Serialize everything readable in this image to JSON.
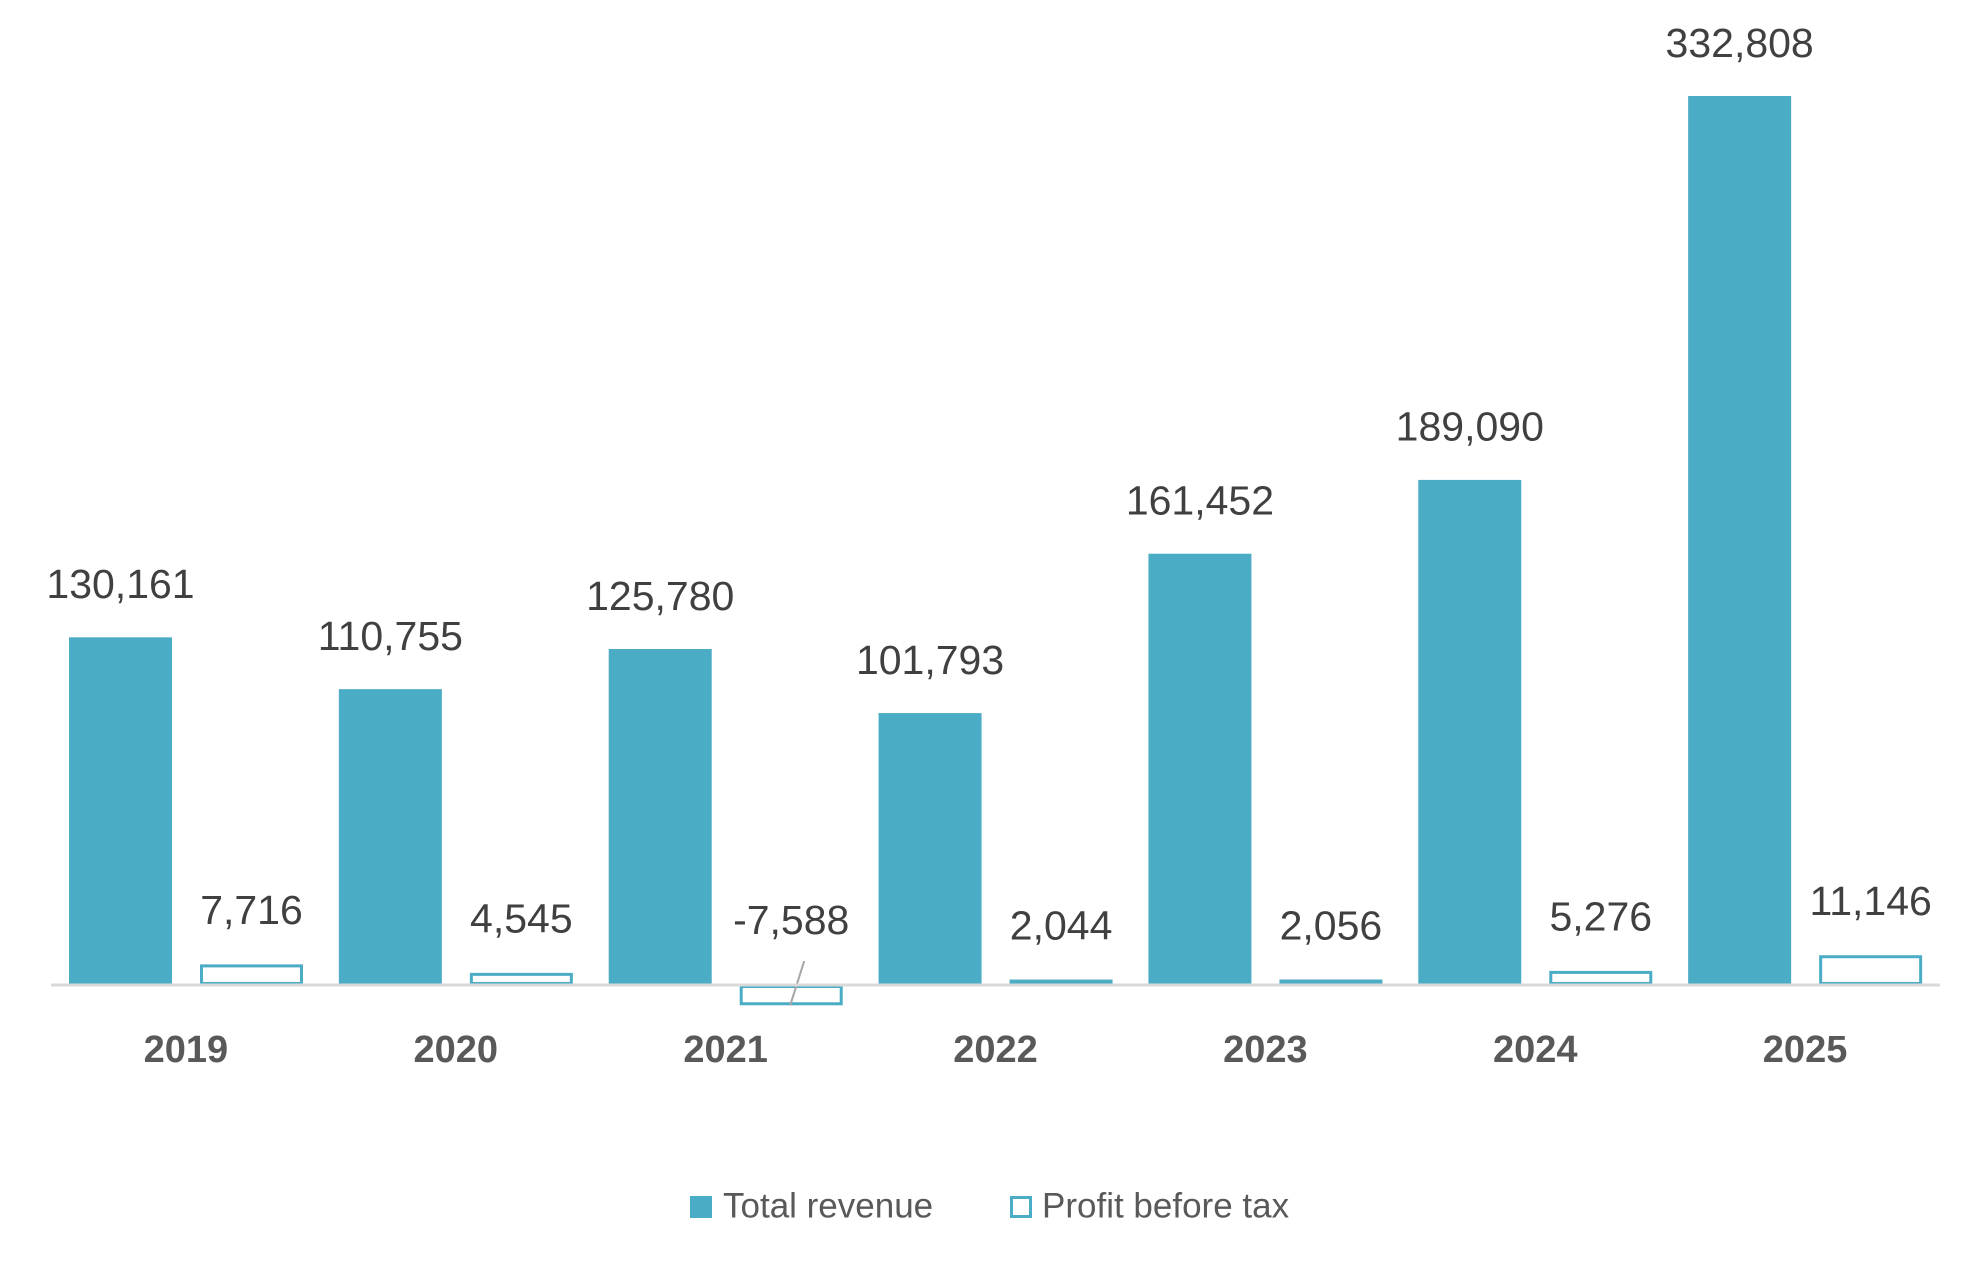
{
  "chart_data": {
    "type": "bar",
    "title": "",
    "xlabel": "",
    "ylabel": "",
    "categories": [
      "2019",
      "2020",
      "2021",
      "2022",
      "2023",
      "2024",
      "2025"
    ],
    "series": [
      {
        "name": "Total revenue",
        "values": [
          130161,
          110755,
          125780,
          101793,
          161452,
          189090,
          332808
        ],
        "labels": [
          "130,161",
          "110,755",
          "125,780",
          "101,793",
          "161,452",
          "189,090",
          "332,808"
        ],
        "style": "filled",
        "color": "#4BACC6"
      },
      {
        "name": "Profit before tax",
        "values": [
          7716,
          4545,
          -7588,
          2044,
          2056,
          5276,
          11146
        ],
        "labels": [
          "7,716",
          "4,545",
          "-7,588",
          "2,044",
          "2,056",
          "5,276",
          "11,146"
        ],
        "style": "outline",
        "color": "#4BACC6"
      }
    ],
    "ylim": [
      -7588,
      332808
    ],
    "grid": false,
    "legend": "bottom",
    "axis_color": "#D9D9D9"
  }
}
